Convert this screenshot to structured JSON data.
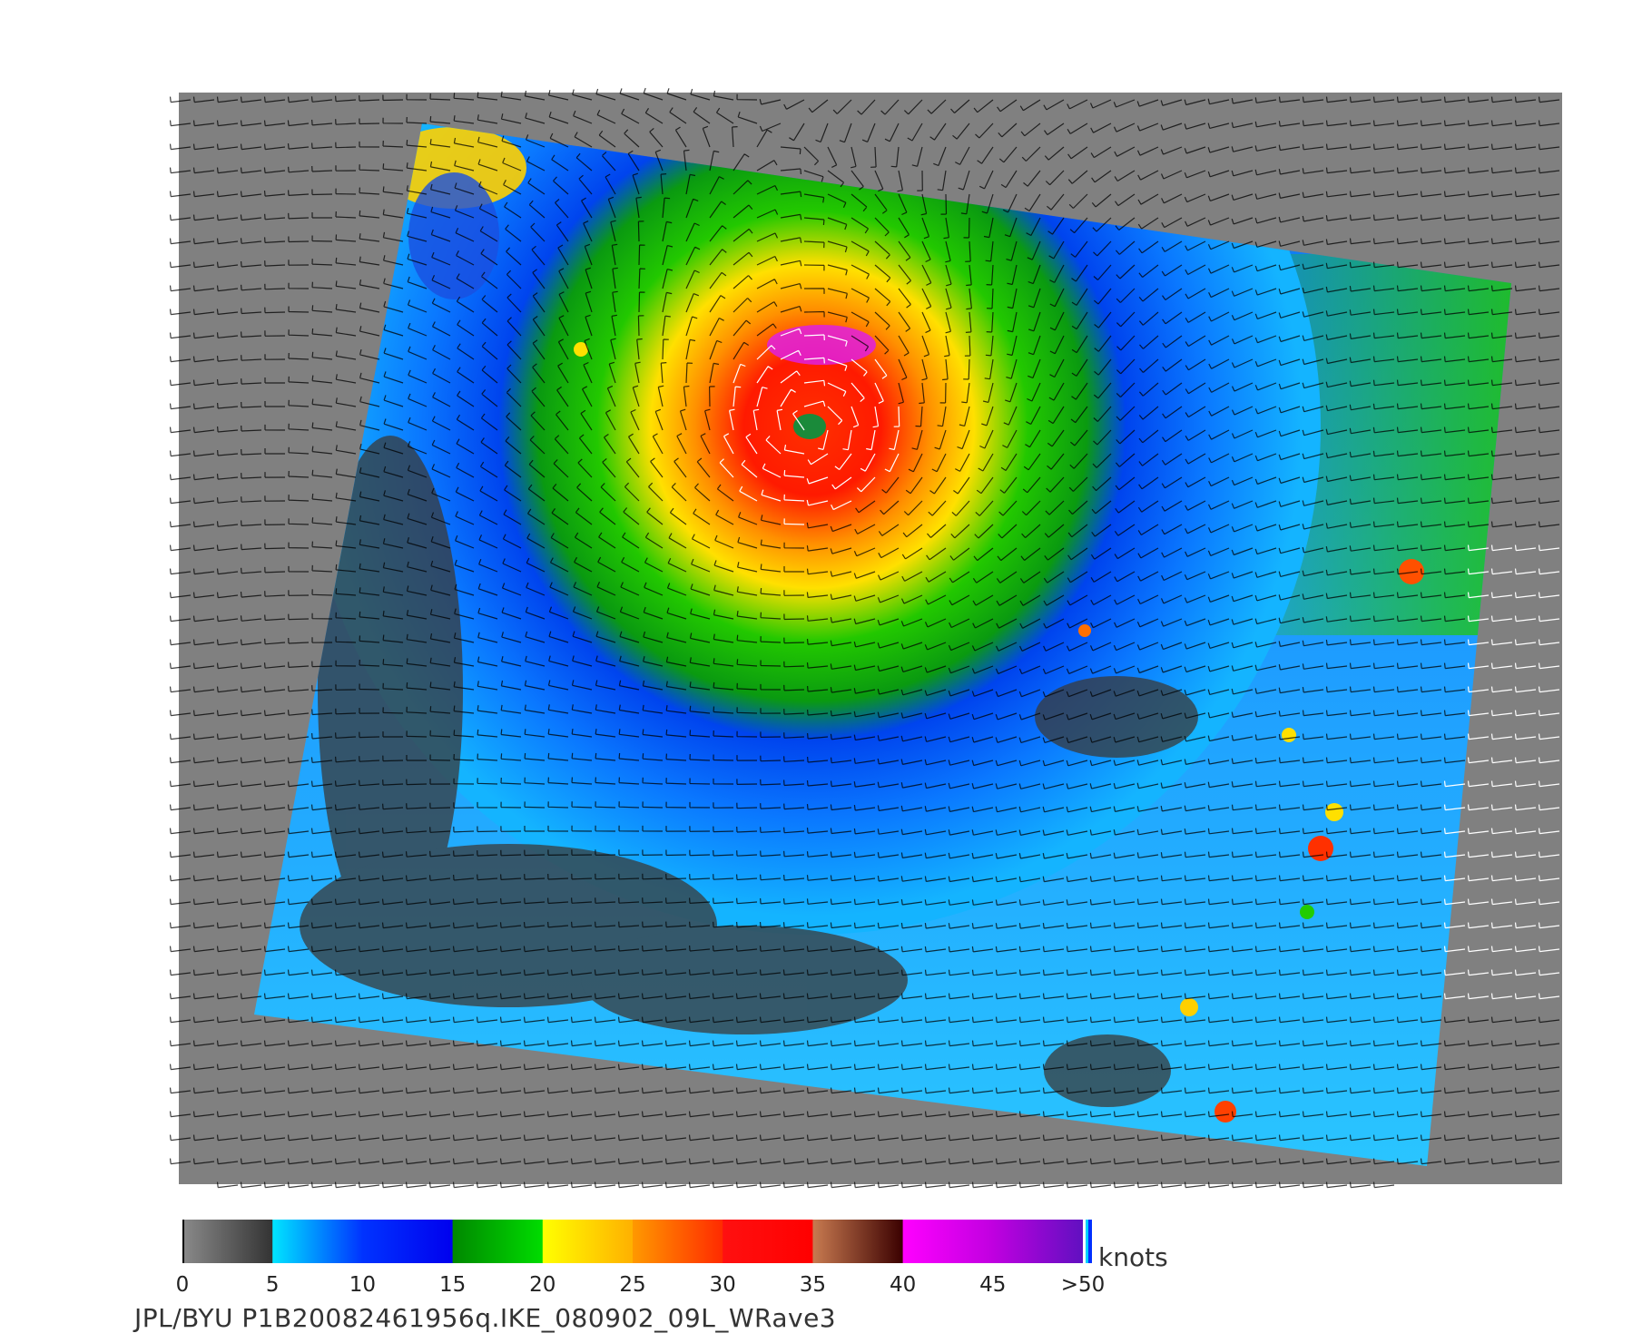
{
  "colorbar": {
    "unit_label": "knots",
    "ticks": [
      "0",
      "5",
      "10",
      "15",
      "20",
      "25",
      "30",
      "35",
      "40",
      "45",
      ">50"
    ],
    "bands": [
      {
        "from": 0,
        "to": 5,
        "colors": [
          "#8a8a8a",
          "#333333"
        ]
      },
      {
        "from": 5,
        "to": 15,
        "colors": [
          "#00e5ff",
          "#0033ff",
          "#0000ee"
        ]
      },
      {
        "from": 15,
        "to": 20,
        "colors": [
          "#008800",
          "#00dd00"
        ]
      },
      {
        "from": 20,
        "to": 25,
        "colors": [
          "#ffff00",
          "#ffb000"
        ]
      },
      {
        "from": 25,
        "to": 30,
        "colors": [
          "#ff9900",
          "#ff2a00"
        ]
      },
      {
        "from": 30,
        "to": 35,
        "colors": [
          "#ff1010",
          "#ff0000"
        ]
      },
      {
        "from": 35,
        "to": 40,
        "colors": [
          "#c87a50",
          "#3a0000"
        ]
      },
      {
        "from": 40,
        "to": 45,
        "colors": [
          "#ff00ff",
          "#c000e0"
        ]
      },
      {
        "from": 45,
        "to": 50,
        "colors": [
          "#c000e0",
          "#6010c0"
        ]
      }
    ],
    "max_value": 50
  },
  "caption": "JPL/BYU  P1B20082461956q.IKE_080902_09L_WRave3",
  "map": {
    "background_color": "#808080",
    "eye_color": "#1a8a3a",
    "wind_barbs": "black and white barbs showing counter-clockwise circulation around hurricane eye"
  }
}
